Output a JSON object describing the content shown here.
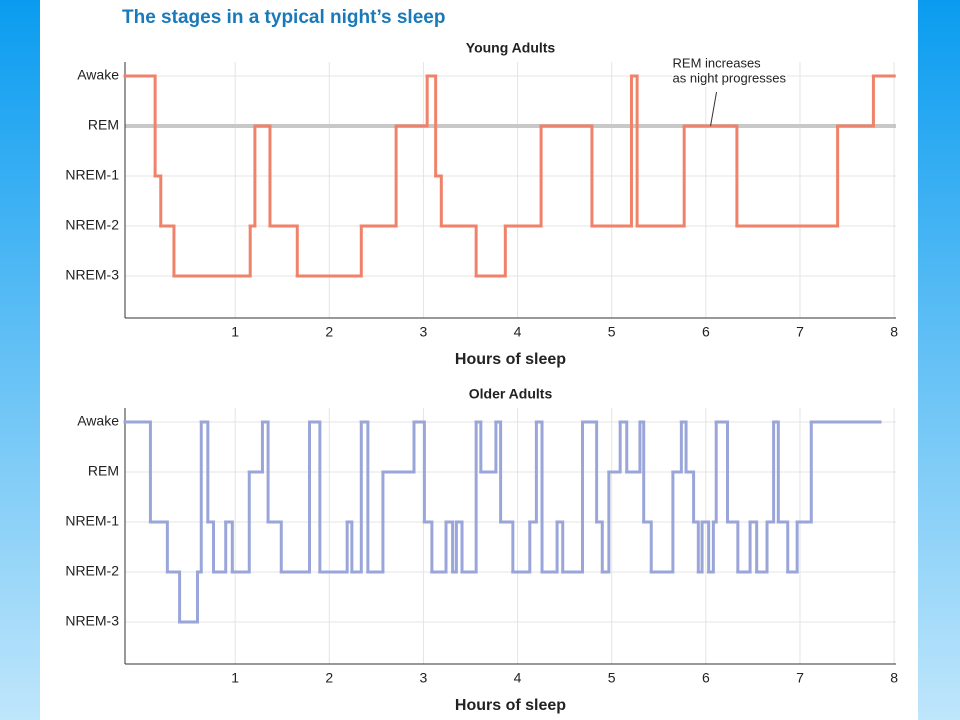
{
  "title": "The stages in a typical night’s sleep",
  "chart_data": [
    {
      "type": "line",
      "step": "post",
      "title": "Young Adults",
      "xlabel": "Hours of sleep",
      "color": "#f0826a",
      "x": [
        -0.17,
        0.15,
        0.21,
        0.35,
        1.16,
        1.21,
        1.37,
        1.66,
        2.34,
        2.71,
        3.04,
        3.13,
        3.19,
        3.56,
        3.87,
        4.25,
        4.79,
        5.21,
        5.27,
        5.77,
        6.33,
        7.4,
        7.78,
        8.0
      ],
      "values": [
        4,
        2,
        1,
        0,
        1,
        3,
        1,
        0,
        1,
        3,
        4,
        2,
        1,
        0,
        1,
        3,
        1,
        4,
        1,
        3,
        1,
        3,
        4,
        4
      ],
      "xlim": [
        -0.17,
        8.02
      ],
      "xticks": [
        1,
        2,
        3,
        4,
        5,
        6,
        7,
        8
      ],
      "ylim": [
        -0.84,
        4.28
      ],
      "yticks": [
        {
          "value": 4,
          "label": "Awake"
        },
        {
          "value": 3,
          "label": "REM"
        },
        {
          "value": 2,
          "label": "NREM-1"
        },
        {
          "value": 1,
          "label": "NREM-2"
        },
        {
          "value": 0,
          "label": "NREM-3"
        }
      ],
      "reference_y": 3,
      "grid": true,
      "annotation": {
        "text": [
          "REM increases",
          "as night progresses"
        ],
        "x": 6.05,
        "y": 3
      }
    },
    {
      "type": "line",
      "step": "post",
      "title": "Older Adults",
      "xlabel": "Hours of sleep",
      "color": "#9aa6da",
      "x": [
        -0.17,
        0.1,
        0.28,
        0.41,
        0.6,
        0.64,
        0.71,
        0.77,
        0.9,
        0.97,
        1.15,
        1.29,
        1.35,
        1.49,
        1.79,
        1.9,
        2.19,
        2.24,
        2.34,
        2.41,
        2.57,
        2.9,
        3.01,
        3.09,
        3.24,
        3.31,
        3.35,
        3.41,
        3.56,
        3.61,
        3.77,
        3.82,
        3.95,
        4.13,
        4.2,
        4.26,
        4.42,
        4.48,
        4.69,
        4.84,
        4.9,
        4.97,
        5.09,
        5.16,
        5.3,
        5.34,
        5.42,
        5.65,
        5.74,
        5.79,
        5.87,
        5.92,
        5.96,
        6.03,
        6.08,
        6.11,
        6.23,
        6.34,
        6.47,
        6.54,
        6.65,
        6.72,
        6.77,
        6.87,
        6.97,
        7.12,
        7.85
      ],
      "values": [
        4,
        2,
        1,
        0,
        1,
        4,
        2,
        1,
        2,
        1,
        3,
        4,
        2,
        1,
        4,
        1,
        2,
        1,
        4,
        1,
        3,
        4,
        2,
        1,
        2,
        1,
        2,
        1,
        4,
        3,
        4,
        2,
        1,
        2,
        4,
        1,
        2,
        1,
        4,
        2,
        1,
        3,
        4,
        3,
        4,
        2,
        1,
        3,
        4,
        3,
        2,
        1,
        2,
        1,
        2,
        4,
        2,
        1,
        2,
        1,
        2,
        4,
        2,
        1,
        2,
        4,
        4
      ],
      "xlim": [
        -0.17,
        8.02
      ],
      "xticks": [
        1,
        2,
        3,
        4,
        5,
        6,
        7,
        8
      ],
      "ylim": [
        -0.84,
        4.28
      ],
      "yticks": [
        {
          "value": 4,
          "label": "Awake"
        },
        {
          "value": 3,
          "label": "REM"
        },
        {
          "value": 2,
          "label": "NREM-1"
        },
        {
          "value": 1,
          "label": "NREM-2"
        },
        {
          "value": 0,
          "label": "NREM-3"
        }
      ],
      "grid": true
    }
  ]
}
